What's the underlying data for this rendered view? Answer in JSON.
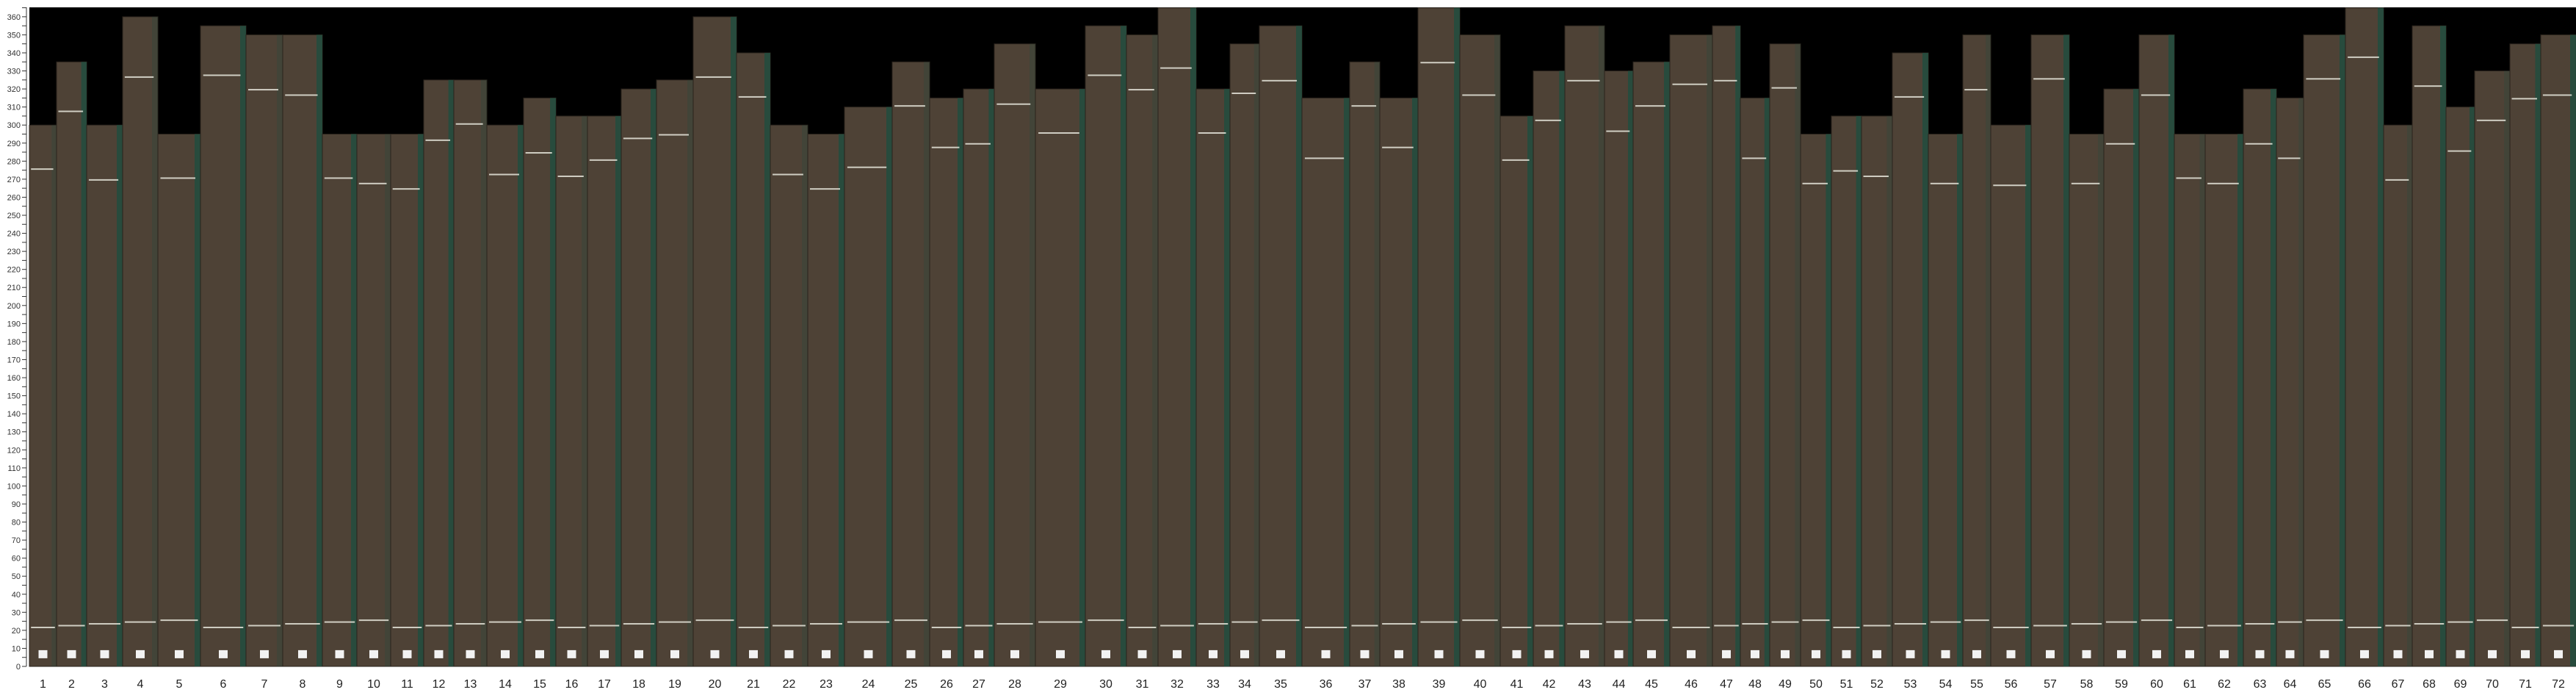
{
  "chart_data": {
    "type": "bar",
    "title": "",
    "xlabel": "",
    "ylabel": "",
    "ylim": [
      0,
      365
    ],
    "y_tick_step": 5,
    "y_label_step": 10,
    "grid": false,
    "background": "#000000",
    "colors": {
      "board": "#4e4236",
      "board_edge": "#1f4d40",
      "mark": "#e8e6dc",
      "tag": "#f2f2f2"
    },
    "categories": [
      "1",
      "2",
      "3",
      "4",
      "5",
      "6",
      "7",
      "8",
      "9",
      "10",
      "11",
      "12",
      "13",
      "14",
      "15",
      "16",
      "17",
      "18",
      "19",
      "20",
      "21",
      "22",
      "23",
      "24",
      "25",
      "26",
      "27",
      "28",
      "29",
      "30",
      "31",
      "32",
      "33",
      "34",
      "35",
      "36",
      "37",
      "38",
      "39",
      "40",
      "41",
      "42",
      "43",
      "44",
      "45",
      "46",
      "47",
      "48",
      "49",
      "50",
      "51",
      "52",
      "53",
      "54",
      "55",
      "56",
      "57",
      "58",
      "59",
      "60",
      "61",
      "62",
      "63",
      "64",
      "65",
      "66",
      "67",
      "68",
      "69",
      "70",
      "71",
      "72"
    ],
    "values": [
      300,
      335,
      300,
      360,
      295,
      355,
      350,
      350,
      295,
      295,
      295,
      325,
      325,
      300,
      315,
      305,
      305,
      320,
      325,
      360,
      340,
      300,
      295,
      310,
      335,
      315,
      320,
      345,
      320,
      355,
      350,
      365,
      320,
      345,
      355,
      315,
      335,
      315,
      365,
      350,
      305,
      330,
      355,
      330,
      335,
      350,
      355,
      315,
      345,
      295,
      305,
      305,
      340,
      295,
      350,
      300,
      350,
      295,
      320,
      350,
      295,
      295,
      320,
      315,
      350,
      365,
      300,
      355,
      310,
      330,
      345,
      350
    ]
  }
}
